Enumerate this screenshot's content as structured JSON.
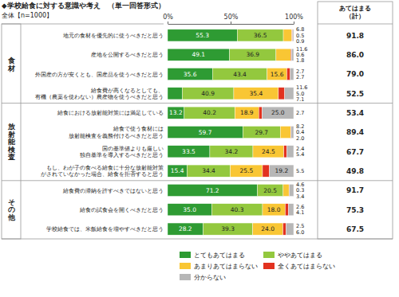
{
  "chart_data": {
    "type": "bar",
    "orientation": "horizontal",
    "stacked": true,
    "data_labels": true,
    "grid": false,
    "legend": "bottom",
    "title": "◆学校給食に対する意識や考え　（単一回答形式）",
    "subtitle": "全体【n=1000】",
    "categories": [
      "地元の食材を優先的に使うべきだと思う",
      "産地を公開するべきだと思う",
      "外国産の方が安くとも、国産品を使うべきだと思う",
      "給食費が高くなるとしても、\n有機（農薬を使わない）農産物を使うべきだと思う",
      "給食における放射能対策には満足している",
      "給食で使う食材には\n放射能検査を義務付けるべきだと思う",
      "国の基準値よりも厳しい\n独自基準を導入するべきだと思う",
      "もし、わが子の食べる給食に十分な放射能対策\nがされていなかった場合、給食を拒否すると思う",
      "給食費の滞納を許すべきではないと思う",
      "給食の試食会を開くべきだと思う",
      "学校給食では、米飯給食を増やすべきだと思う"
    ],
    "row_groups": [
      "食材",
      "食材",
      "食材",
      "食材",
      "放射能検査",
      "放射能検査",
      "放射能検査",
      "放射能検査",
      "その他",
      "その他",
      "その他"
    ],
    "series": [
      {
        "name": "とてもあてはまる",
        "color": "#2e9b33",
        "values": [
          55.3,
          49.1,
          35.6,
          11.6,
          13.2,
          59.7,
          33.5,
          15.4,
          71.2,
          35.0,
          28.2
        ],
        "value_labels": [
          "55.3",
          "49.1",
          "35.6",
          "11.6",
          "13.2",
          "59.7",
          "33.5",
          "15.4",
          "71.2",
          "35.0",
          "28.2"
        ]
      },
      {
        "name": "ややあてはまる",
        "color": "#93c83e",
        "values": [
          36.5,
          36.9,
          43.4,
          40.9,
          40.2,
          29.7,
          34.2,
          34.4,
          20.5,
          40.3,
          39.3
        ],
        "value_labels": [
          "36.5",
          "36.9",
          "43.4",
          "40.9",
          "40.2",
          "29.7",
          "34.2",
          "34.4",
          "20.5",
          "40.3",
          "39.3"
        ]
      },
      {
        "name": "あまりあてはまらない",
        "color": "#f9c634",
        "values": [
          6.8,
          11.6,
          15.6,
          35.4,
          18.9,
          8.2,
          24.5,
          25.5,
          4.6,
          18.0,
          24.0
        ],
        "value_labels": [
          "6.8",
          "11.6",
          "15.6",
          "35.4",
          "18.9",
          "8.2",
          "24.5",
          "25.5",
          "4.6",
          "18.0",
          "24.0"
        ]
      },
      {
        "name": "全くあてはまらない",
        "color": "#e2321f",
        "values": [
          0.5,
          0.6,
          2.7,
          5.0,
          2.7,
          0.4,
          2.4,
          5.5,
          0.3,
          2.6,
          2.5
        ],
        "value_labels": [
          "0.5",
          "0.6",
          "2.7",
          "5.0",
          "2.7",
          "0.4",
          "2.4",
          "5.5",
          "0.3",
          "2.6",
          "2.5"
        ]
      },
      {
        "name": "分からない",
        "color": "#b7b7b7",
        "values": [
          0.9,
          1.8,
          2.7,
          7.1,
          25.0,
          2.0,
          5.4,
          19.2,
          3.4,
          4.1,
          6.0
        ],
        "value_labels": [
          "0.9",
          "1.8",
          "2.7",
          "7.1",
          "25.0",
          "2.0",
          "5.4",
          "19.2",
          "3.4",
          "4.1",
          "6.0"
        ]
      }
    ],
    "xlim": [
      0,
      100
    ],
    "xticks": [
      {
        "value": 0,
        "label": "0%"
      },
      {
        "value": 50,
        "label": "50%"
      },
      {
        "value": 100,
        "label": "100%"
      }
    ],
    "totals_title": "あてはまる\n（計）",
    "totals": [
      91.8,
      86.0,
      79.0,
      52.5,
      53.4,
      89.4,
      67.7,
      49.8,
      91.7,
      75.3,
      67.5
    ],
    "total_labels": [
      "91.8",
      "86.0",
      "79.0",
      "52.5",
      "53.4",
      "89.4",
      "67.7",
      "49.8",
      "91.7",
      "75.3",
      "67.5"
    ]
  }
}
